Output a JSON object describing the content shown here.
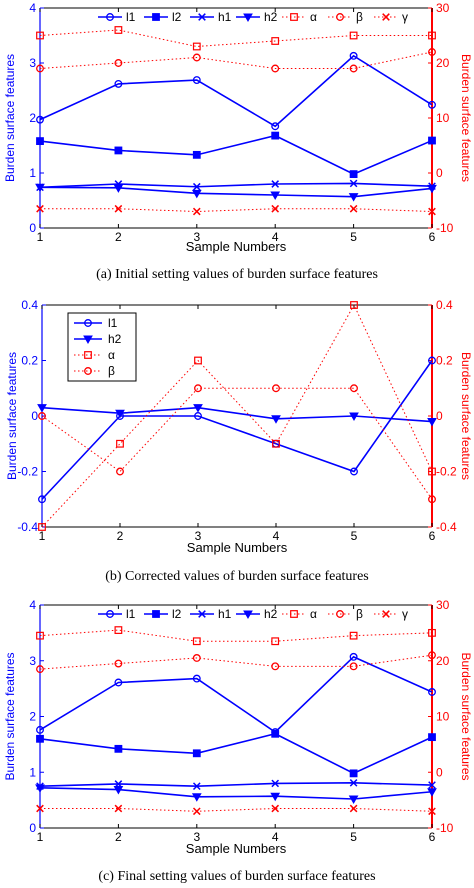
{
  "colors": {
    "left_axis": "#0000ff",
    "right_axis": "#ff0000",
    "frame": "#000000"
  },
  "chart_data": [
    {
      "type": "line",
      "caption": "(a) Initial setting values of burden surface features",
      "xlabel": "Sample Numbers",
      "ylabel": "Burden surface features",
      "ylabel_right": "Burden surface features",
      "x": [
        1,
        2,
        3,
        4,
        5,
        6
      ],
      "xlim": [
        1,
        6
      ],
      "xticks": [
        "1",
        "2",
        "3",
        "4",
        "5",
        "6"
      ],
      "ylim": [
        0,
        4
      ],
      "yticks": [
        "0",
        "1",
        "2",
        "3",
        "4"
      ],
      "ylim_right": [
        -10,
        30
      ],
      "yticks_right": [
        "-10",
        "0",
        "10",
        "20",
        "30"
      ],
      "legend_position": "top (horizontal, inside)",
      "grid": false,
      "series": [
        {
          "name": "l1",
          "axis": "left",
          "marker": "circle",
          "values": [
            1.97,
            2.62,
            2.69,
            1.85,
            3.13,
            2.24
          ]
        },
        {
          "name": "l2",
          "axis": "left",
          "marker": "square",
          "values": [
            1.58,
            1.41,
            1.33,
            1.68,
            0.98,
            1.59
          ]
        },
        {
          "name": "h1",
          "axis": "left",
          "marker": "x",
          "values": [
            0.74,
            0.8,
            0.75,
            0.8,
            0.81,
            0.76
          ]
        },
        {
          "name": "h2",
          "axis": "left",
          "marker": "triangle-down",
          "values": [
            0.74,
            0.73,
            0.63,
            0.6,
            0.57,
            0.72
          ]
        },
        {
          "name": "α",
          "axis": "right",
          "marker": "square",
          "values": [
            25,
            26,
            23,
            24,
            25,
            25
          ]
        },
        {
          "name": "β",
          "axis": "right",
          "marker": "circle",
          "values": [
            19,
            20,
            21,
            19,
            19,
            22
          ]
        },
        {
          "name": "γ",
          "axis": "right",
          "marker": "x",
          "values": [
            -6.5,
            -6.5,
            -7,
            -6.5,
            -6.5,
            -7
          ]
        }
      ]
    },
    {
      "type": "line",
      "caption": "(b) Corrected values of burden surface features",
      "xlabel": "Sample Numbers",
      "ylabel": "Burden surface features",
      "ylabel_right": "Burden surface features",
      "x": [
        1,
        2,
        3,
        4,
        5,
        6
      ],
      "xlim": [
        1,
        6
      ],
      "xticks": [
        "1",
        "2",
        "3",
        "4",
        "5",
        "6"
      ],
      "ylim": [
        -0.4,
        0.4
      ],
      "yticks": [
        "-0.4",
        "-0.2",
        "0",
        "0.2",
        "0.4"
      ],
      "ylim_right": [
        -0.4,
        0.4
      ],
      "yticks_right": [
        "-0.4",
        "-0.2",
        "0",
        "0.2",
        "0.4"
      ],
      "legend_position": "top-left (vertical, inside)",
      "grid": false,
      "series": [
        {
          "name": "l1",
          "axis": "left",
          "marker": "circle",
          "values": [
            -0.3,
            0.0,
            0.0,
            -0.1,
            -0.2,
            0.2
          ]
        },
        {
          "name": "h2",
          "axis": "left",
          "marker": "triangle-down",
          "values": [
            0.03,
            0.01,
            0.03,
            -0.01,
            0.0,
            -0.02
          ]
        },
        {
          "name": "α",
          "axis": "right",
          "marker": "square",
          "values": [
            -0.4,
            -0.1,
            0.2,
            -0.1,
            0.4,
            -0.2
          ]
        },
        {
          "name": "β",
          "axis": "right",
          "marker": "circle",
          "values": [
            0.0,
            -0.2,
            0.1,
            0.1,
            0.1,
            -0.3
          ]
        }
      ]
    },
    {
      "type": "line",
      "caption": "(c) Final setting values of burden surface features",
      "xlabel": "Sample Numbers",
      "ylabel": "Burden surface features",
      "ylabel_right": "Burden surface features",
      "x": [
        1,
        2,
        3,
        4,
        5,
        6
      ],
      "xlim": [
        1,
        6
      ],
      "xticks": [
        "1",
        "2",
        "3",
        "4",
        "5",
        "6"
      ],
      "ylim": [
        0,
        4
      ],
      "yticks": [
        "0",
        "1",
        "2",
        "3",
        "4"
      ],
      "ylim_right": [
        -10,
        30
      ],
      "yticks_right": [
        "-10",
        "0",
        "10",
        "20",
        "30"
      ],
      "legend_position": "top (horizontal, inside)",
      "grid": false,
      "series": [
        {
          "name": "l1",
          "axis": "left",
          "marker": "circle",
          "values": [
            1.76,
            2.61,
            2.68,
            1.72,
            3.07,
            2.44
          ]
        },
        {
          "name": "l2",
          "axis": "left",
          "marker": "square",
          "values": [
            1.6,
            1.42,
            1.34,
            1.69,
            0.98,
            1.63
          ]
        },
        {
          "name": "h1",
          "axis": "left",
          "marker": "x",
          "values": [
            0.75,
            0.79,
            0.75,
            0.8,
            0.81,
            0.77
          ]
        },
        {
          "name": "h2",
          "axis": "left",
          "marker": "triangle-down",
          "values": [
            0.72,
            0.69,
            0.56,
            0.57,
            0.52,
            0.65
          ]
        },
        {
          "name": "α",
          "axis": "right",
          "marker": "square",
          "values": [
            24.5,
            25.5,
            23.5,
            23.5,
            24.5,
            25
          ]
        },
        {
          "name": "β",
          "axis": "right",
          "marker": "circle",
          "values": [
            18.5,
            19.5,
            20.5,
            19,
            19,
            21
          ]
        },
        {
          "name": "γ",
          "axis": "right",
          "marker": "x",
          "values": [
            -6.5,
            -6.5,
            -7,
            -6.5,
            -6.5,
            -7
          ]
        }
      ]
    }
  ]
}
